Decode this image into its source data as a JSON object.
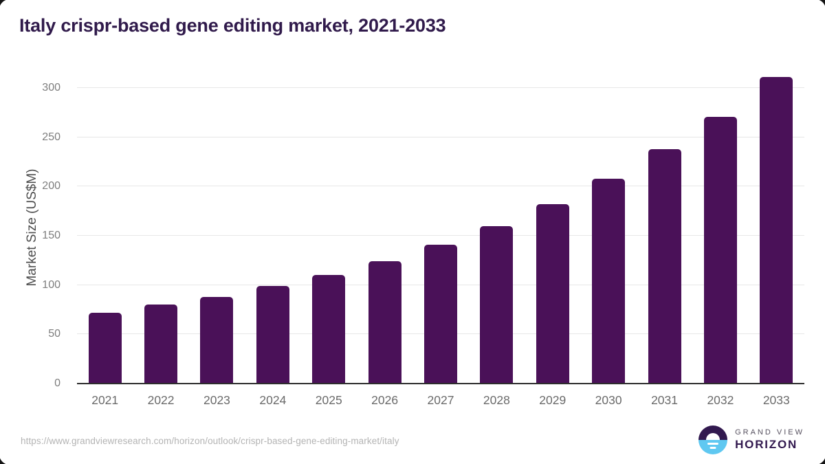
{
  "header": {
    "title": "Italy crispr-based gene editing market, 2021-2033"
  },
  "chart_data": {
    "type": "bar",
    "title": "Italy crispr-based gene editing market, 2021-2033",
    "categories": [
      "2021",
      "2022",
      "2023",
      "2024",
      "2025",
      "2026",
      "2027",
      "2028",
      "2029",
      "2030",
      "2031",
      "2032",
      "2033"
    ],
    "values": [
      72,
      80,
      88,
      99,
      110,
      124,
      141,
      160,
      182,
      208,
      238,
      271,
      311
    ],
    "xlabel": "",
    "ylabel": "Market Size (US$M)",
    "ylim": [
      0,
      316
    ],
    "yticks": [
      0,
      50,
      100,
      150,
      200,
      250,
      300
    ],
    "grid": true,
    "legend": null,
    "bar_color": "#4a1158"
  },
  "footer": {
    "source_url": "https://www.grandviewresearch.com/horizon/outlook/crispr-based-gene-editing-market/italy",
    "logo": {
      "line1": "GRAND VIEW",
      "line2": "HORIZON"
    }
  },
  "colors": {
    "bar": "#4a1158",
    "title_text": "#301a4b",
    "axis_line": "#2d2d2d",
    "gridline": "#e7e7e7",
    "y_tick_text": "#7d7d7d",
    "x_tick_text": "#6a6a6a",
    "url_text": "#b3b3b3",
    "logo_purple": "#32194f",
    "logo_blue": "#5fc8f1",
    "logo_gray_text": "#56505f"
  }
}
